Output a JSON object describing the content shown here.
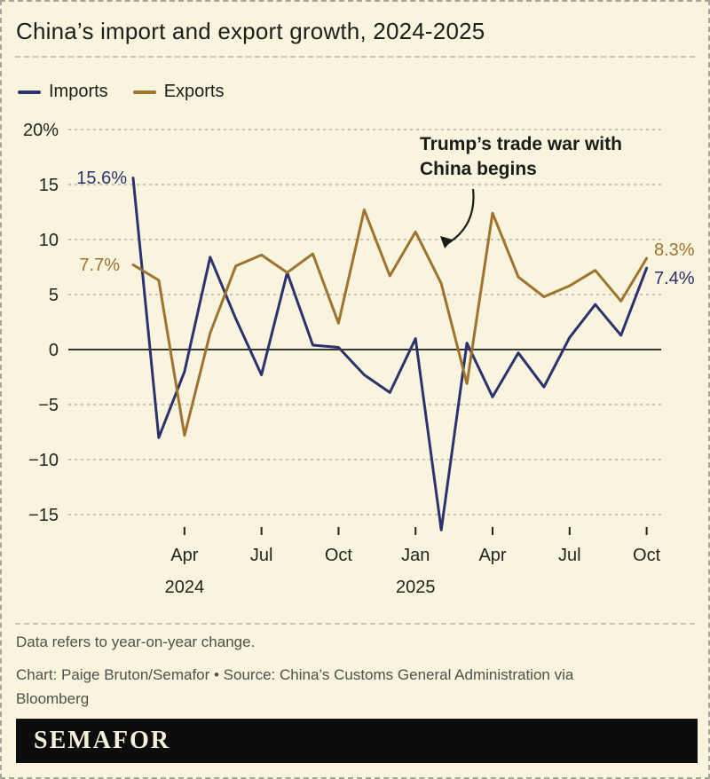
{
  "title": "China’s import and export growth, 2024-2025",
  "colors": {
    "background": "#f8f4dd",
    "imports": "#2b326e",
    "exports": "#a0722f",
    "grid": "#b5b5a7",
    "axis_text": "#23231f",
    "logo_bar": "#0c0c0c",
    "logo_text": "#f6f1da"
  },
  "legend": [
    {
      "label": "Imports",
      "color": "#2b326e"
    },
    {
      "label": "Exports",
      "color": "#a0722f"
    }
  ],
  "chart_data": {
    "type": "line",
    "title": "China’s import and export growth, 2024-2025",
    "ylabel": "year-on-year change, %",
    "ylim": [
      -17.5,
      21
    ],
    "grid": "horizontal dashed, solid zero line",
    "legend_position": "top-left above plot",
    "categories": [
      "Feb 2024",
      "Mar 2024",
      "Apr 2024",
      "May 2024",
      "Jun 2024",
      "Jul 2024",
      "Aug 2024",
      "Sep 2024",
      "Oct 2024",
      "Nov 2024",
      "Dec 2024",
      "Jan 2025",
      "Feb 2025",
      "Mar 2025",
      "Apr 2025",
      "May 2025",
      "Jun 2025",
      "Jul 2025",
      "Aug 2025",
      "Sep 2025",
      "Oct 2025"
    ],
    "series": [
      {
        "name": "Imports",
        "color": "#2b326e",
        "values": [
          15.6,
          -8.0,
          -2.0,
          8.4,
          2.8,
          -2.3,
          7.0,
          0.4,
          0.2,
          -2.3,
          -3.9,
          1.0,
          -16.4,
          0.6,
          -4.3,
          -0.3,
          -3.4,
          1.1,
          4.1,
          1.3,
          7.4
        ]
      },
      {
        "name": "Exports",
        "color": "#a0722f",
        "values": [
          7.7,
          6.3,
          -7.8,
          1.5,
          7.6,
          8.6,
          7.0,
          8.7,
          2.4,
          12.7,
          6.7,
          10.7,
          6.0,
          -3.1,
          12.4,
          6.6,
          4.8,
          5.8,
          7.2,
          4.4,
          8.3
        ]
      }
    ],
    "y_ticks": [
      {
        "value": 20,
        "label": "20%"
      },
      {
        "value": 15,
        "label": "15"
      },
      {
        "value": 10,
        "label": "10"
      },
      {
        "value": 5,
        "label": "5"
      },
      {
        "value": 0,
        "label": "0"
      },
      {
        "value": -5,
        "label": "−5"
      },
      {
        "value": -10,
        "label": "−10"
      },
      {
        "value": -15,
        "label": "−15"
      }
    ],
    "x_ticks": [
      {
        "month_index": 2,
        "label": "Apr",
        "year": "2024"
      },
      {
        "month_index": 5,
        "label": "Jul",
        "year": ""
      },
      {
        "month_index": 8,
        "label": "Oct",
        "year": ""
      },
      {
        "month_index": 11,
        "label": "Jan",
        "year": "2025"
      },
      {
        "month_index": 14,
        "label": "Apr",
        "year": ""
      },
      {
        "month_index": 17,
        "label": "Jul",
        "year": ""
      },
      {
        "month_index": 20,
        "label": "Oct",
        "year": ""
      }
    ]
  },
  "point_labels": [
    {
      "text": "15.6%",
      "series": "Imports",
      "position": "start"
    },
    {
      "text": "7.7%",
      "series": "Exports",
      "position": "start"
    },
    {
      "text": "8.3%",
      "series": "Exports",
      "position": "end"
    },
    {
      "text": "7.4%",
      "series": "Imports",
      "position": "end"
    }
  ],
  "annotation": {
    "line1": "Trump’s trade war with",
    "line2": "China begins"
  },
  "footer": {
    "note": "Data refers to year-on-year change.",
    "credit": "Chart: Paige Bruton/Semafor • Source: China’s Customs General Administration via Bloomberg"
  },
  "logo": "SEMAFOR"
}
